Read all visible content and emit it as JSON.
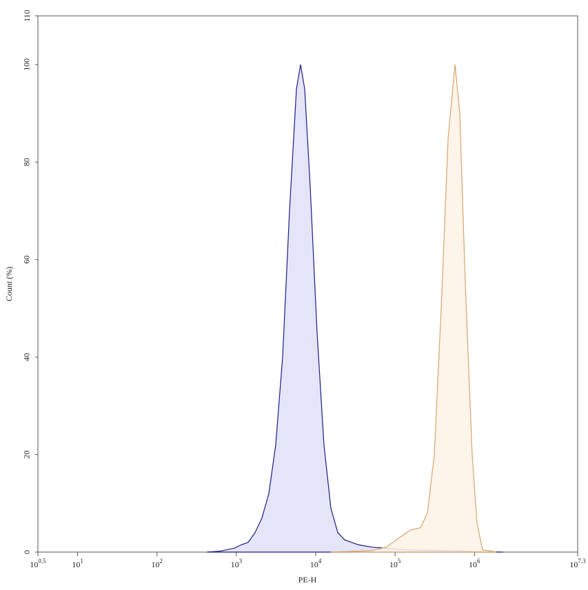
{
  "chart_data": {
    "type": "histogram-overlay",
    "x_label": "PE-H",
    "y_label": "Count (%)",
    "xscale": "log",
    "xlim": [
      3.1623,
      19952623
    ],
    "ylim": [
      0,
      110
    ],
    "xticks": [
      {
        "value": 3.1623,
        "label": "10^0.5"
      },
      {
        "value": 10,
        "label": "10^1"
      },
      {
        "value": 100,
        "label": "10^2"
      },
      {
        "value": 1000,
        "label": "10^3"
      },
      {
        "value": 10000,
        "label": "10^4"
      },
      {
        "value": 100000,
        "label": "10^5"
      },
      {
        "value": 1000000,
        "label": "10^6"
      },
      {
        "value": 19952623,
        "label": "10^7.3"
      }
    ],
    "yticks": [
      0,
      20,
      40,
      60,
      80,
      100,
      110
    ],
    "series": [
      {
        "color": "#1c1c84",
        "fill": "#dfe1f8",
        "x": [
          425,
          632,
          944,
          1153,
          1409,
          1721,
          2100,
          2566,
          3133,
          3828,
          4677,
          5715,
          6442,
          7261,
          8515,
          10400,
          12700,
          15520,
          18960,
          23160,
          34530,
          51520,
          76910,
          171000,
          464500,
          1262000,
          2301000
        ],
        "values": [
          0,
          0.2,
          0.8,
          1.5,
          2,
          4,
          7,
          12,
          22,
          40,
          70,
          95,
          100,
          95,
          75,
          45,
          22,
          9,
          4,
          2.5,
          1.5,
          1,
          0.8,
          0.4,
          0.3,
          0.1,
          0
        ]
      },
      {
        "color": "#d9a46c",
        "fill": "#fdf2e6",
        "x": [
          15520,
          51520,
          76910,
          114600,
          154900,
          208900,
          255300,
          311900,
          381000,
          465600,
          568800,
          653600,
          766100,
          935400,
          1076000,
          1262000,
          1884000
        ],
        "values": [
          0,
          0.3,
          1,
          3,
          4.5,
          5,
          8,
          20,
          50,
          85,
          100,
          90,
          55,
          20,
          6,
          0.5,
          0
        ]
      }
    ]
  }
}
